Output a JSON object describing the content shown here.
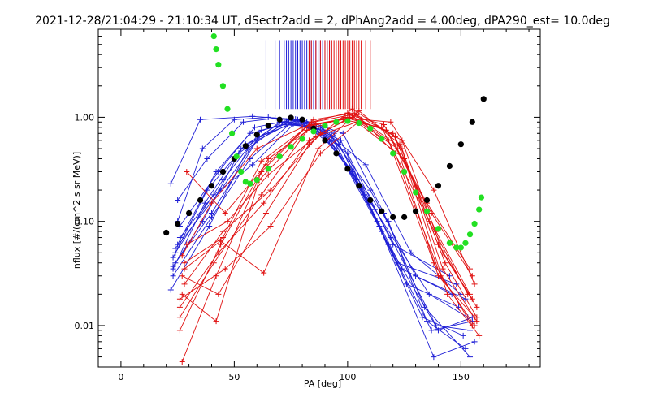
{
  "chart_data": {
    "type": "scatter",
    "title": "2021-12-28/21:04:29 - 21:10:34 UT, dSectr2add = 2, dPhAng2add = 4.00deg, dPA290_est=  10.0deg",
    "xlabel": "PA [deg]",
    "ylabel": "nflux [#/(cm^2 s sr MeV)]",
    "xlim": [
      -10,
      185
    ],
    "ylim": [
      0.004,
      7
    ],
    "yscale": "log",
    "grid": false,
    "x_ticks": [
      0,
      50,
      100,
      150
    ],
    "x_tick_labels": [
      "0",
      "50",
      "100",
      "150"
    ],
    "y_ticks": [
      0.01,
      0.1,
      1.0
    ],
    "y_tick_labels": [
      "0.01",
      "0.10",
      "1.00"
    ],
    "colors": {
      "blue": "#1f1fd6",
      "red": "#e01010",
      "black": "#000000",
      "green": "#22e022"
    },
    "blue_marker_pa": [
      64,
      68,
      70,
      72,
      73,
      74,
      75,
      76,
      77,
      78,
      79,
      80,
      81,
      82,
      83,
      84,
      85,
      86,
      87,
      88,
      89,
      90,
      91,
      92
    ],
    "red_marker_pa": [
      83,
      84,
      86,
      88,
      90,
      91,
      92,
      93,
      94,
      95,
      96,
      97,
      98,
      99,
      100,
      101,
      102,
      103,
      104,
      105,
      106,
      108,
      110
    ],
    "series": [
      {
        "color": "blue",
        "lines": [
          {
            "x": [
              22,
              35,
              58,
              76,
              92,
              118,
              135,
              152
            ],
            "y": [
              0.23,
              0.95,
              1.02,
              0.96,
              0.6,
              0.1,
              0.011,
              0.006
            ]
          },
          {
            "x": [
              23,
              38,
              55,
              74,
              90,
              112,
              136,
              153
            ],
            "y": [
              0.045,
              0.2,
              0.55,
              0.9,
              0.7,
              0.13,
              0.02,
              0.012
            ]
          },
          {
            "x": [
              24,
              40,
              60,
              78,
              95,
              118,
              140,
              155
            ],
            "y": [
              0.04,
              0.12,
              0.6,
              0.95,
              0.5,
              0.06,
              0.009,
              0.012
            ]
          },
          {
            "x": [
              25,
              42,
              57,
              72,
              88,
              108,
              128,
              150
            ],
            "y": [
              0.06,
              0.3,
              0.7,
              0.85,
              0.8,
              0.35,
              0.05,
              0.02
            ]
          },
          {
            "x": [
              23,
              36,
              52,
              70,
              86,
              104,
              124,
              146
            ],
            "y": [
              0.037,
              0.1,
              0.45,
              0.9,
              0.85,
              0.25,
              0.035,
              0.02
            ]
          },
          {
            "x": [
              24,
              45,
              62,
              80,
              98,
              116,
              134,
              154
            ],
            "y": [
              0.05,
              0.25,
              0.75,
              0.95,
              0.7,
              0.12,
              0.015,
              0.005
            ]
          },
          {
            "x": [
              22,
              39,
              56,
              73,
              93,
              114,
              133,
              151
            ],
            "y": [
              0.022,
              0.09,
              0.5,
              0.92,
              0.65,
              0.09,
              0.012,
              0.008
            ]
          },
          {
            "x": [
              25,
              38,
              54,
              68,
              84,
              102,
              122,
              148
            ],
            "y": [
              0.16,
              0.4,
              0.9,
              0.98,
              0.88,
              0.3,
              0.04,
              0.025
            ]
          },
          {
            "x": [
              26,
              41,
              58,
              76,
              91,
              110,
              130,
              152
            ],
            "y": [
              0.07,
              0.18,
              0.35,
              0.85,
              0.75,
              0.2,
              0.03,
              0.018
            ]
          },
          {
            "x": [
              23,
              37,
              53,
              71,
              89,
              107,
              126,
              149
            ],
            "y": [
              0.035,
              0.15,
              0.5,
              0.9,
              0.8,
              0.18,
              0.025,
              0.015
            ]
          },
          {
            "x": [
              24,
              44,
              61,
              79,
              97,
              115,
              137,
              155
            ],
            "y": [
              0.055,
              0.2,
              0.65,
              0.93,
              0.6,
              0.08,
              0.009,
              0.011
            ]
          },
          {
            "x": [
              25,
              36,
              50,
              65,
              82,
              100,
              120,
              145
            ],
            "y": [
              0.1,
              0.5,
              0.95,
              1.0,
              0.9,
              0.45,
              0.06,
              0.03
            ]
          },
          {
            "x": [
              23,
              40,
              57,
              75,
              94,
              113,
              138,
              156
            ],
            "y": [
              0.03,
              0.11,
              0.4,
              0.88,
              0.7,
              0.1,
              0.005,
              0.007
            ]
          },
          {
            "x": [
              26,
              43,
              59,
              77,
              96,
              119,
              139,
              154
            ],
            "y": [
              0.09,
              0.3,
              0.8,
              0.96,
              0.55,
              0.07,
              0.01,
              0.009
            ]
          }
        ]
      },
      {
        "color": "red",
        "lines": [
          {
            "x": [
              27,
              42,
              62,
              84,
              100,
              118,
              138,
              155
            ],
            "y": [
              0.0045,
              0.03,
              0.3,
              0.9,
              1.1,
              0.6,
              0.04,
              0.01
            ]
          },
          {
            "x": [
              26,
              44,
              65,
              86,
              102,
              122,
              140,
              156
            ],
            "y": [
              0.009,
              0.06,
              0.4,
              0.85,
              1.0,
              0.5,
              0.03,
              0.012
            ]
          },
          {
            "x": [
              27,
              40,
              60,
              80,
              98,
              115,
              136,
              153
            ],
            "y": [
              0.047,
              0.15,
              0.5,
              0.8,
              0.95,
              0.8,
              0.1,
              0.02
            ]
          },
          {
            "x": [
              28,
              45,
              66,
              88,
              104,
              124,
              142,
              157
            ],
            "y": [
              0.025,
              0.08,
              0.2,
              0.7,
              1.05,
              0.6,
              0.05,
              0.015
            ]
          },
          {
            "x": [
              26,
              43,
              63,
              83,
              101,
              120,
              139,
              154
            ],
            "y": [
              0.015,
              0.05,
              0.15,
              0.6,
              1.0,
              0.7,
              0.08,
              0.02
            ]
          },
          {
            "x": [
              29,
              46,
              64,
              85,
              103,
              121,
              141,
              156
            ],
            "y": [
              0.3,
              0.12,
              0.35,
              0.95,
              1.1,
              0.45,
              0.03,
              0.01
            ]
          },
          {
            "x": [
              27,
              42,
              61,
              82,
              99,
              117,
              137,
              155
            ],
            "y": [
              0.02,
              0.011,
              0.25,
              0.75,
              1.0,
              0.75,
              0.12,
              0.03
            ]
          },
          {
            "x": [
              28,
              44,
              63,
              87,
              105,
              123,
              143,
              157
            ],
            "y": [
              0.035,
              0.065,
              0.032,
              0.5,
              1.15,
              0.55,
              0.04,
              0.012
            ]
          },
          {
            "x": [
              26,
              41,
              62,
              84,
              100,
              119,
              138,
              156
            ],
            "y": [
              0.012,
              0.04,
              0.18,
              0.85,
              0.98,
              0.9,
              0.2,
              0.025
            ]
          },
          {
            "x": [
              29,
              47,
              65,
              86,
              104,
              125,
              144,
              158
            ],
            "y": [
              0.06,
              0.1,
              0.28,
              0.65,
              0.9,
              0.4,
              0.02,
              0.008
            ]
          },
          {
            "x": [
              27,
              43,
              64,
              83,
              102,
              121,
              140,
              155
            ],
            "y": [
              0.03,
              0.02,
              0.12,
              0.55,
              1.2,
              0.65,
              0.06,
              0.018
            ]
          },
          {
            "x": [
              28,
              45,
              62,
              85,
              101,
              116,
              135,
              154
            ],
            "y": [
              0.04,
              0.07,
              0.38,
              0.9,
              1.05,
              0.85,
              0.15,
              0.035
            ]
          },
          {
            "x": [
              26,
              46,
              66,
              88,
              106,
              124,
              142,
              157
            ],
            "y": [
              0.018,
              0.035,
              0.09,
              0.45,
              0.95,
              0.5,
              0.035,
              0.011
            ]
          }
        ]
      },
      {
        "color": "black",
        "style": "thick-dots",
        "x": [
          20,
          25,
          30,
          35,
          40,
          45,
          50,
          55,
          60,
          65,
          70,
          75,
          80,
          85,
          90,
          95,
          100,
          105,
          110,
          115,
          120,
          125,
          130,
          135,
          140,
          145,
          150,
          155,
          160
        ],
        "y": [
          0.078,
          0.095,
          0.12,
          0.16,
          0.22,
          0.3,
          0.4,
          0.53,
          0.68,
          0.83,
          0.95,
          0.99,
          0.95,
          0.78,
          0.6,
          0.45,
          0.32,
          0.22,
          0.16,
          0.125,
          0.11,
          0.11,
          0.125,
          0.16,
          0.22,
          0.34,
          0.55,
          0.9,
          1.5
        ]
      },
      {
        "color": "green",
        "style": "thick-dots",
        "x": [
          41,
          42,
          43,
          45,
          47,
          49,
          51,
          53,
          55,
          57,
          60,
          65,
          70,
          75,
          80,
          85,
          90,
          95,
          100,
          105,
          110,
          115,
          120,
          125,
          130,
          135,
          140,
          145,
          148,
          150,
          152,
          154,
          156,
          158,
          159
        ],
        "y": [
          6.0,
          4.5,
          3.2,
          2.0,
          1.2,
          0.7,
          0.42,
          0.3,
          0.24,
          0.23,
          0.25,
          0.32,
          0.42,
          0.52,
          0.62,
          0.73,
          0.83,
          0.9,
          0.92,
          0.88,
          0.78,
          0.62,
          0.45,
          0.3,
          0.19,
          0.125,
          0.085,
          0.062,
          0.056,
          0.056,
          0.062,
          0.075,
          0.095,
          0.13,
          0.17
        ]
      }
    ]
  }
}
